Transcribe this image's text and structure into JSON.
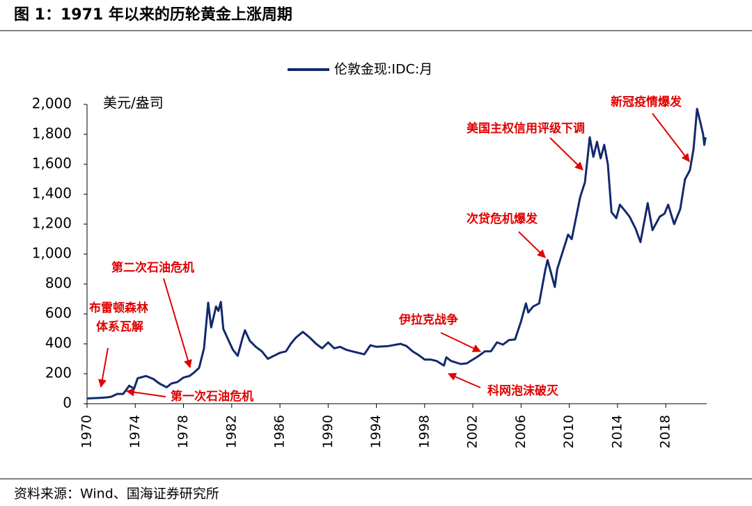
{
  "chart_data": {
    "type": "line",
    "title": "图 1：1971 年以来的历轮黄金上涨周期",
    "source": "资料来源：Wind、国海证券研究所",
    "y_label": "美元/盎司",
    "legend_position": "top",
    "x": [
      1970,
      1971,
      1971.6,
      1972,
      1972.5,
      1973,
      1973.5,
      1973.9,
      1974.2,
      1974.9,
      1975.5,
      1976,
      1976.6,
      1977,
      1977.5,
      1978,
      1978.5,
      1978.9,
      1979.3,
      1979.7,
      1980.05,
      1980.3,
      1980.7,
      1980.9,
      1981.1,
      1981.3,
      1981.7,
      1982.1,
      1982.5,
      1982.9,
      1983.1,
      1983.5,
      1984,
      1984.5,
      1985,
      1985.5,
      1986,
      1986.5,
      1986.9,
      1987.3,
      1987.9,
      1988.5,
      1989,
      1989.5,
      1990,
      1990.5,
      1991,
      1991.5,
      1992,
      1992.5,
      1993,
      1993.5,
      1994,
      1995,
      1996,
      1996.5,
      1997,
      1997.5,
      1998,
      1998.5,
      1999,
      1999.6,
      1999.8,
      2000.2,
      2001,
      2001.5,
      2002,
      2002.5,
      2003,
      2003.5,
      2004,
      2004.5,
      2005,
      2005.5,
      2006,
      2006.4,
      2006.6,
      2007,
      2007.5,
      2008,
      2008.2,
      2008.8,
      2009,
      2009.9,
      2010.2,
      2010.9,
      2011.3,
      2011.7,
      2012,
      2012.3,
      2012.6,
      2012.9,
      2013.2,
      2013.5,
      2013.9,
      2014.2,
      2014.6,
      2015,
      2015.5,
      2015.9,
      2016.5,
      2016.9,
      2017.5,
      2017.9,
      2018.2,
      2018.7,
      2019.2,
      2019.6,
      2020,
      2020.3,
      2020.6,
      2020.9,
      2021.1,
      2021.2,
      2021.3
    ],
    "series": [
      {
        "name": "伦敦金现:IDC:月",
        "color": "#13296b",
        "values": [
          35,
          38,
          42,
          46,
          65,
          65,
          120,
          100,
          170,
          185,
          165,
          135,
          110,
          135,
          145,
          175,
          185,
          210,
          240,
          370,
          675,
          510,
          650,
          620,
          680,
          500,
          430,
          360,
          320,
          440,
          490,
          420,
          380,
          350,
          300,
          320,
          340,
          350,
          400,
          440,
          480,
          440,
          400,
          370,
          410,
          370,
          380,
          360,
          350,
          340,
          330,
          390,
          380,
          385,
          400,
          385,
          350,
          325,
          295,
          295,
          285,
          255,
          310,
          285,
          265,
          270,
          295,
          320,
          350,
          350,
          410,
          395,
          425,
          430,
          550,
          670,
          610,
          650,
          670,
          890,
          960,
          780,
          900,
          1130,
          1100,
          1380,
          1480,
          1780,
          1650,
          1750,
          1640,
          1730,
          1600,
          1280,
          1240,
          1330,
          1290,
          1250,
          1170,
          1080,
          1340,
          1160,
          1250,
          1270,
          1330,
          1200,
          1300,
          1500,
          1560,
          1700,
          1970,
          1870,
          1800,
          1730,
          1780
        ]
      }
    ],
    "xlim": [
      1970,
      2021.4
    ],
    "xticks": [
      1970,
      1974,
      1978,
      1982,
      1986,
      1990,
      1994,
      1998,
      2002,
      2006,
      2010,
      2014,
      2018
    ],
    "ylim": [
      0,
      2000
    ],
    "yticks": [
      0,
      {
        "value": 200,
        "label": "200"
      },
      {
        "value": 400,
        "label": "400"
      },
      {
        "value": 600,
        "label": "600"
      },
      {
        "value": 800,
        "label": "800"
      },
      {
        "value": 1000,
        "label": "1,000"
      },
      {
        "value": 1200,
        "label": "1,200"
      },
      {
        "value": 1400,
        "label": "1,400"
      },
      {
        "value": 1600,
        "label": "1,600"
      },
      {
        "value": 1800,
        "label": "1,800"
      },
      {
        "value": 2000,
        "label": "2,000"
      }
    ],
    "annotations": [
      "布雷顿森林",
      "体系瓦解",
      "第一次石油危机",
      "第二次石油危机",
      "伊拉克战争",
      "科网泡沫破灭",
      "次贷危机爆发",
      "美国主权信用评级下调",
      "新冠疫情爆发"
    ]
  }
}
